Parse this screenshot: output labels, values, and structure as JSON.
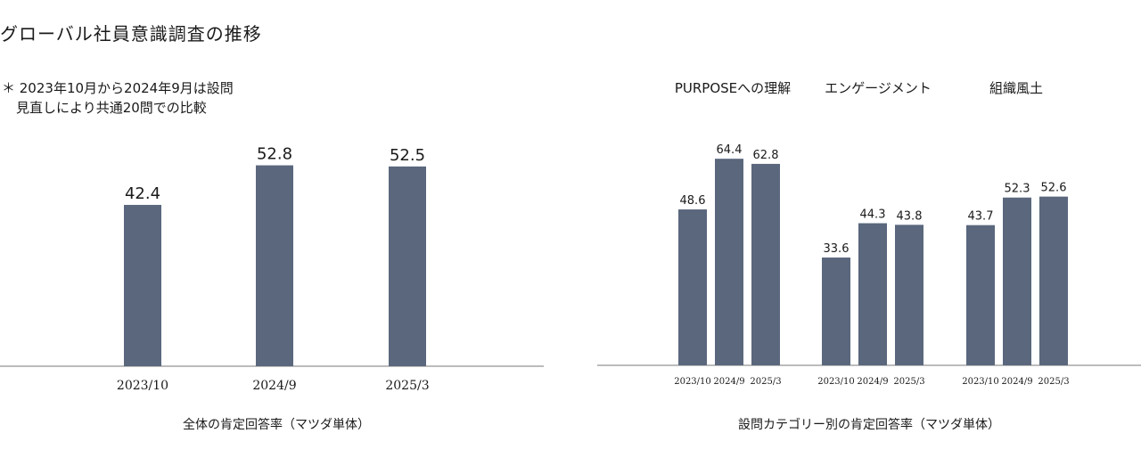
{
  "title": "グローバル社員意識調査の推移",
  "note": {
    "line1": "＊ 2023年10月から2024年9月は設問",
    "line2": "見直しにより共通20問での比較"
  },
  "colors": {
    "bar": "#5a677d",
    "axis": "#7a7a7a"
  },
  "chart_data": [
    {
      "type": "bar",
      "categories": [
        "2023/10",
        "2024/9",
        "2025/3"
      ],
      "values": [
        42.4,
        52.8,
        52.5
      ],
      "title": "",
      "caption": "全体の肯定回答率（マツダ単体）",
      "xlabel": "",
      "ylabel": "",
      "ylim": [
        0,
        60
      ]
    },
    {
      "type": "bar",
      "groups": [
        "PURPOSEへの理解",
        "エンゲージメント",
        "組織風土"
      ],
      "categories": [
        "2023/10",
        "2024/9",
        "2025/3"
      ],
      "series": [
        {
          "group": "PURPOSEへの理解",
          "values": [
            48.6,
            64.4,
            62.8
          ]
        },
        {
          "group": "エンゲージメント",
          "values": [
            33.6,
            44.3,
            43.8
          ]
        },
        {
          "group": "組織風土",
          "values": [
            43.7,
            52.3,
            52.6
          ]
        }
      ],
      "title": "",
      "caption": "設問カテゴリー別の肯定回答率（マツダ単体）",
      "xlabel": "",
      "ylabel": "",
      "ylim": [
        0,
        70
      ]
    }
  ]
}
